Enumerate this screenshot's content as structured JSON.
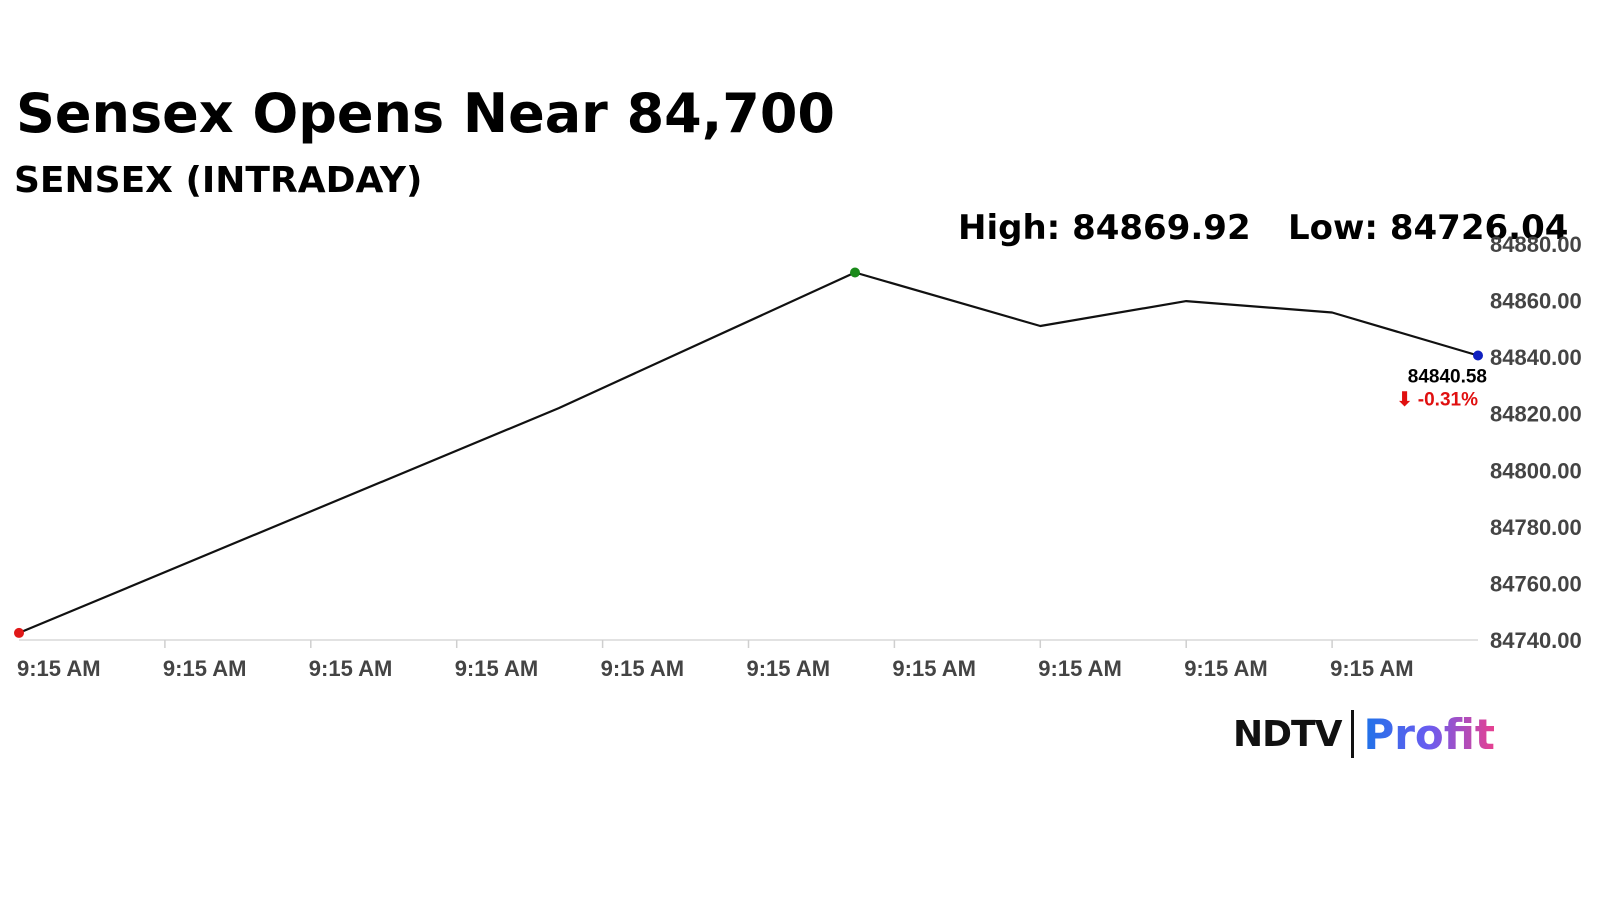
{
  "header": {
    "title": "Sensex Opens Near 84,700",
    "subtitle": "SENSEX (INTRADAY)"
  },
  "stats": {
    "high_label": "High: 84869.92",
    "low_label": "Low: 84726.04"
  },
  "last_point": {
    "value_label": "84840.58",
    "change_label": "⬇ -0.31%"
  },
  "logo": {
    "brand": "NDTV",
    "product": "Profit"
  },
  "chart_data": {
    "type": "line",
    "title": "Sensex Opens Near 84,700",
    "subtitle": "SENSEX (INTRADAY)",
    "xlabel": "",
    "ylabel": "",
    "x_tick_labels": [
      "9:15 AM",
      "9:15 AM",
      "9:15 AM",
      "9:15 AM",
      "9:15 AM",
      "9:15 AM",
      "9:15 AM",
      "9:15 AM",
      "9:15 AM",
      "9:15 AM"
    ],
    "y_tick_labels": [
      "84740.00",
      "84760.00",
      "84780.00",
      "84800.00",
      "84820.00",
      "84840.00",
      "84860.00",
      "84880.00"
    ],
    "ylim": [
      84740,
      84880
    ],
    "y_ticks": [
      84740,
      84760,
      84780,
      84800,
      84820,
      84840,
      84860,
      84880
    ],
    "series": [
      {
        "values": [
          84742.5,
          84822,
          84869.92,
          84851,
          84859.8,
          84855.8,
          84840.58
        ]
      }
    ],
    "x": [
      0,
      3.7,
      5.73,
      7,
      8,
      9,
      10
    ],
    "x_max": 10,
    "markers": {
      "first_color": "#e01818",
      "max_color": "#1a8a1a",
      "last_color": "#1020c0"
    },
    "line_color": "#111111",
    "grid": false,
    "legend": "none"
  }
}
